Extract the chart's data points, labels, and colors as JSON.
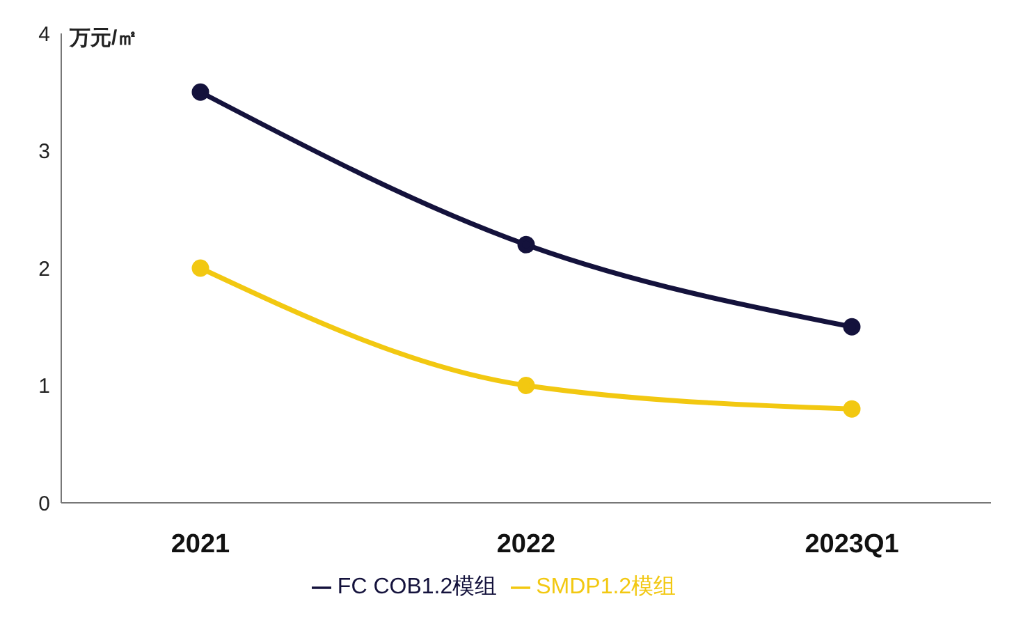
{
  "chart_data": {
    "type": "line",
    "ylabel": "万元/㎡",
    "categories": [
      "2021",
      "2022",
      "2023Q1"
    ],
    "series": [
      {
        "name": "SMDP1.2模组",
        "color": "#f2c811",
        "values": [
          2.0,
          1.0,
          0.8
        ]
      },
      {
        "name": "FC COB1.2模组",
        "color": "#14123c",
        "values": [
          3.5,
          2.2,
          1.5
        ]
      }
    ],
    "ylim": [
      0,
      4
    ],
    "yticks": [
      0,
      1,
      2,
      3,
      4
    ],
    "grid": false,
    "legend": "bottom",
    "marker": "circle",
    "line_style": "solid"
  }
}
